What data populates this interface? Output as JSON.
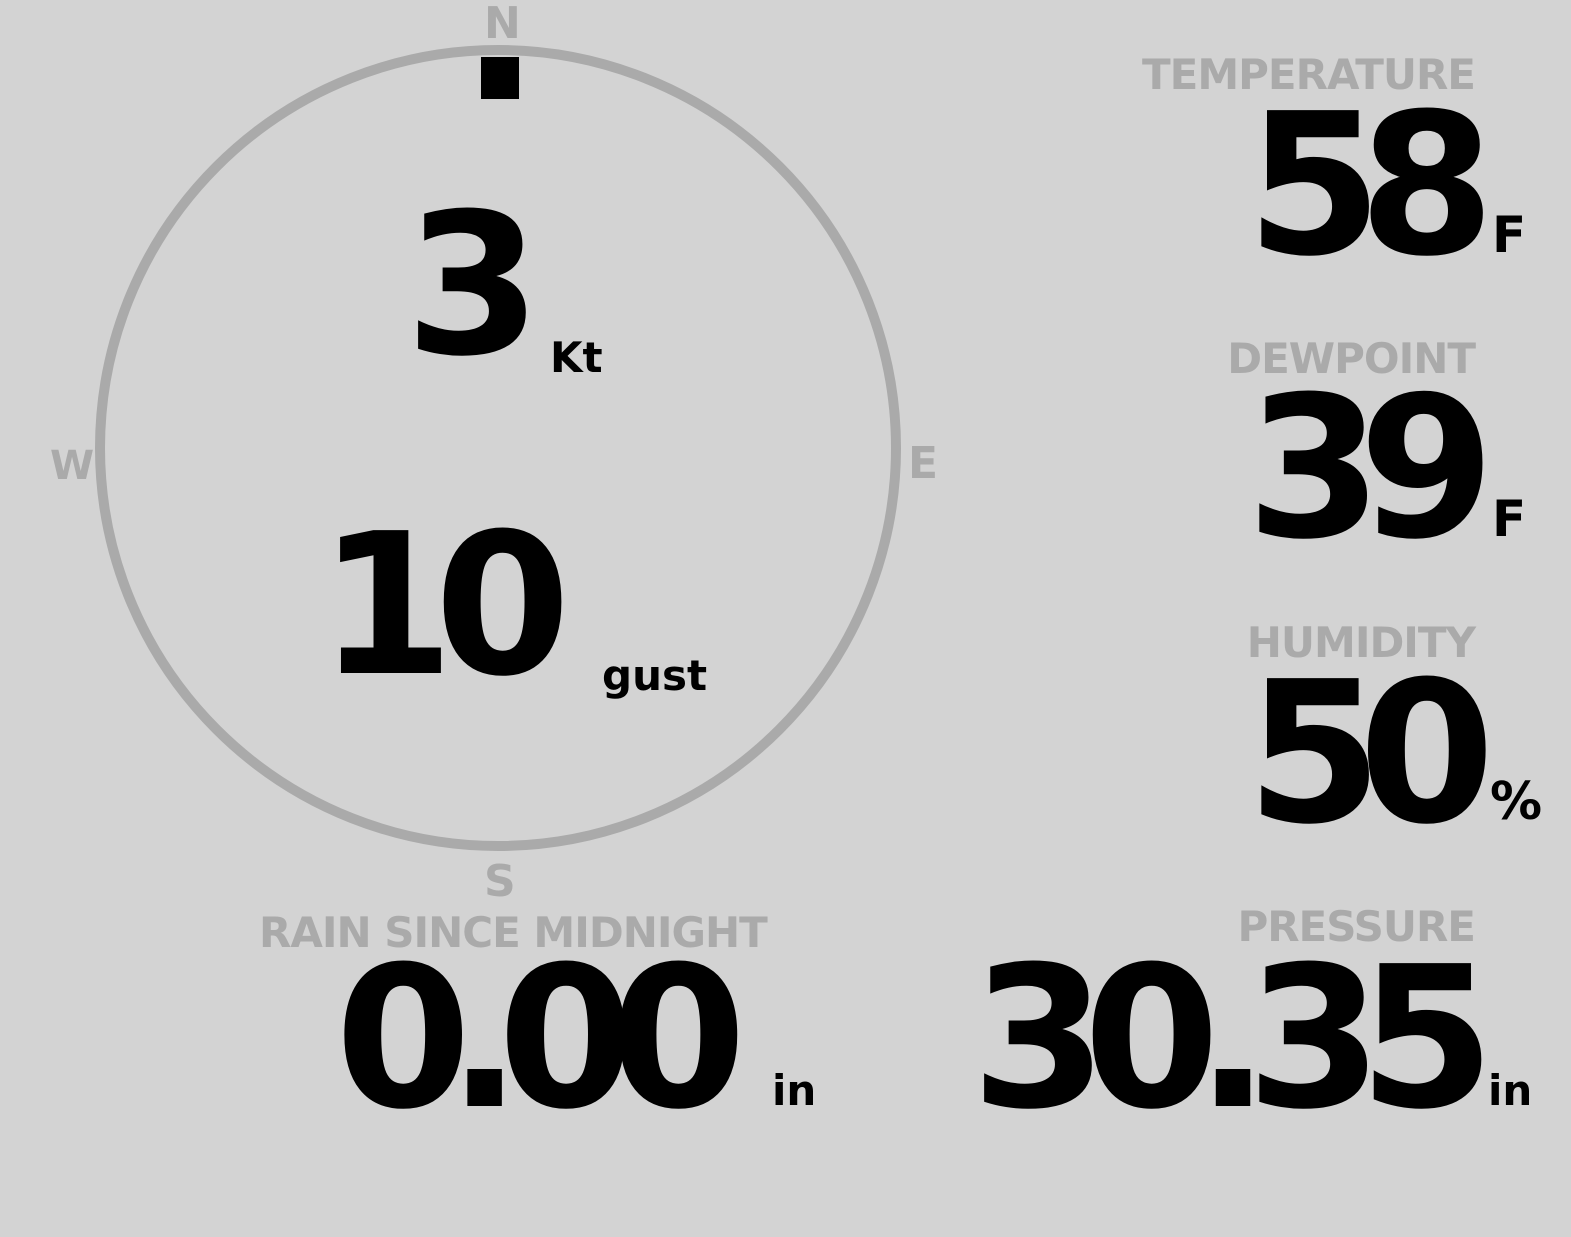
{
  "colors": {
    "background": "#d3d3d3",
    "label": "#aaaaaa",
    "value": "#000000",
    "ring": "#aaaaaa"
  },
  "wind": {
    "compass": {
      "north": "N",
      "south": "S",
      "east": "E",
      "west": "W"
    },
    "direction_deg": 0,
    "speed": "3",
    "speed_unit": "Kt",
    "gust": "10",
    "gust_unit": "gust"
  },
  "rain": {
    "label": "RAIN SINCE MIDNIGHT",
    "value": "0.00",
    "unit": "in"
  },
  "temperature": {
    "label": "TEMPERATURE",
    "value": "58",
    "unit": "F"
  },
  "dewpoint": {
    "label": "DEWPOINT",
    "value": "39",
    "unit": "F"
  },
  "humidity": {
    "label": "HUMIDITY",
    "value": "50",
    "unit": "%"
  },
  "pressure": {
    "label": "PRESSURE",
    "value": "30.35",
    "unit": "in"
  }
}
